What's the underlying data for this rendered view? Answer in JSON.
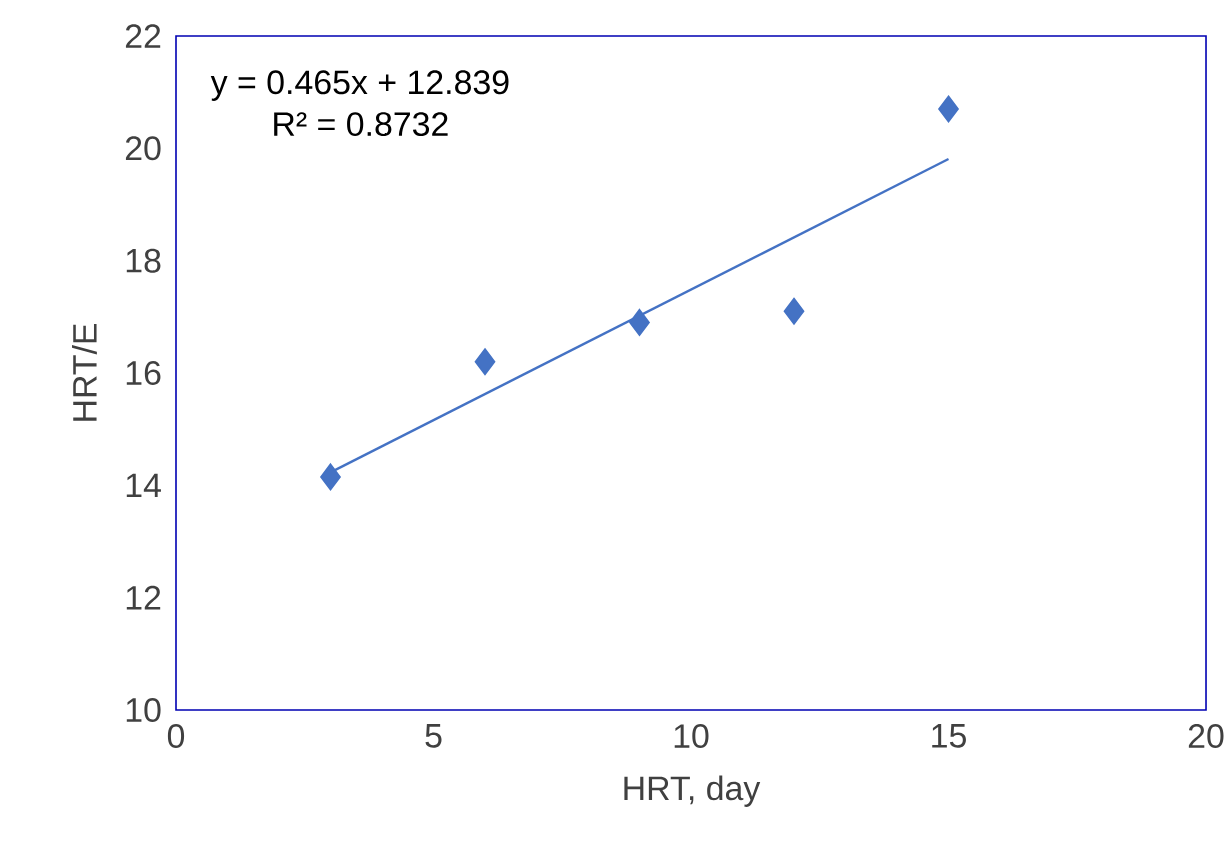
{
  "chart_data": {
    "type": "scatter",
    "xlabel": "HRT, day",
    "ylabel": "HRT/E",
    "xlim": [
      0,
      20
    ],
    "ylim": [
      10,
      22
    ],
    "xticks": [
      0,
      5,
      10,
      15,
      20
    ],
    "yticks": [
      10,
      12,
      14,
      16,
      18,
      20,
      22
    ],
    "series": [
      {
        "color": "#4472c4",
        "marker": "diamond",
        "x": [
          3,
          6,
          9,
          12,
          15
        ],
        "values": [
          14.15,
          16.2,
          16.9,
          17.1,
          20.7
        ]
      },
      {
        "type": "line",
        "color": "#4472c4",
        "marker": "none",
        "line_style": "solid",
        "x": [
          3,
          15
        ],
        "values": [
          14.23,
          19.81
        ]
      }
    ],
    "annotations": [
      "y = 0.465x + 12.839",
      "R² = 0.8732"
    ]
  }
}
